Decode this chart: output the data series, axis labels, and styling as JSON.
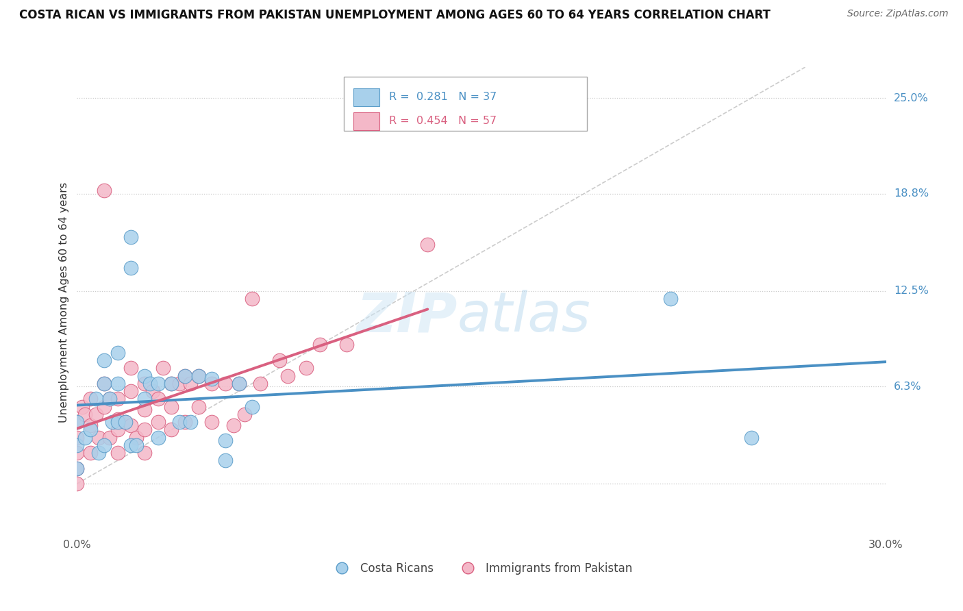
{
  "title": "COSTA RICAN VS IMMIGRANTS FROM PAKISTAN UNEMPLOYMENT AMONG AGES 60 TO 64 YEARS CORRELATION CHART",
  "source": "Source: ZipAtlas.com",
  "ylabel": "Unemployment Among Ages 60 to 64 years",
  "right_ytick_vals": [
    0.063,
    0.125,
    0.188,
    0.25
  ],
  "right_ytick_labels": [
    "6.3%",
    "12.5%",
    "18.8%",
    "25.0%"
  ],
  "xlim": [
    0.0,
    0.3
  ],
  "ylim": [
    -0.035,
    0.27
  ],
  "color_blue": "#a8d0eb",
  "color_blue_edge": "#5b9dc9",
  "color_blue_line": "#4a90c4",
  "color_pink": "#f4b8c8",
  "color_pink_edge": "#d96080",
  "color_pink_line": "#d96080",
  "R_blue": "0.281",
  "N_blue": "37",
  "R_pink": "0.454",
  "N_pink": "57",
  "costa_rican_x": [
    0.0,
    0.0,
    0.0,
    0.003,
    0.005,
    0.007,
    0.008,
    0.01,
    0.01,
    0.01,
    0.012,
    0.013,
    0.015,
    0.015,
    0.015,
    0.018,
    0.02,
    0.02,
    0.02,
    0.022,
    0.025,
    0.025,
    0.027,
    0.03,
    0.03,
    0.035,
    0.038,
    0.04,
    0.042,
    0.045,
    0.05,
    0.055,
    0.055,
    0.06,
    0.065,
    0.22,
    0.25
  ],
  "costa_rican_y": [
    0.04,
    0.025,
    0.01,
    0.03,
    0.035,
    0.055,
    0.02,
    0.08,
    0.065,
    0.025,
    0.055,
    0.04,
    0.085,
    0.065,
    0.04,
    0.04,
    0.16,
    0.14,
    0.025,
    0.025,
    0.07,
    0.055,
    0.065,
    0.065,
    0.03,
    0.065,
    0.04,
    0.07,
    0.04,
    0.07,
    0.068,
    0.028,
    0.015,
    0.065,
    0.05,
    0.12,
    0.03
  ],
  "pakistan_x": [
    0.0,
    0.0,
    0.0,
    0.0,
    0.0,
    0.002,
    0.003,
    0.005,
    0.005,
    0.005,
    0.007,
    0.008,
    0.01,
    0.01,
    0.01,
    0.012,
    0.012,
    0.015,
    0.015,
    0.015,
    0.015,
    0.018,
    0.02,
    0.02,
    0.02,
    0.022,
    0.025,
    0.025,
    0.025,
    0.025,
    0.028,
    0.03,
    0.03,
    0.032,
    0.035,
    0.035,
    0.035,
    0.038,
    0.04,
    0.04,
    0.042,
    0.045,
    0.045,
    0.05,
    0.05,
    0.055,
    0.058,
    0.06,
    0.062,
    0.065,
    0.068,
    0.075,
    0.078,
    0.085,
    0.09,
    0.1,
    0.13
  ],
  "pakistan_y": [
    0.04,
    0.03,
    0.02,
    0.01,
    0.0,
    0.05,
    0.045,
    0.055,
    0.038,
    0.02,
    0.045,
    0.03,
    0.19,
    0.065,
    0.05,
    0.055,
    0.03,
    0.055,
    0.042,
    0.035,
    0.02,
    0.04,
    0.075,
    0.06,
    0.038,
    0.03,
    0.065,
    0.048,
    0.035,
    0.02,
    0.06,
    0.055,
    0.04,
    0.075,
    0.065,
    0.05,
    0.035,
    0.065,
    0.07,
    0.04,
    0.065,
    0.07,
    0.05,
    0.065,
    0.04,
    0.065,
    0.038,
    0.065,
    0.045,
    0.12,
    0.065,
    0.08,
    0.07,
    0.075,
    0.09,
    0.09,
    0.155
  ]
}
